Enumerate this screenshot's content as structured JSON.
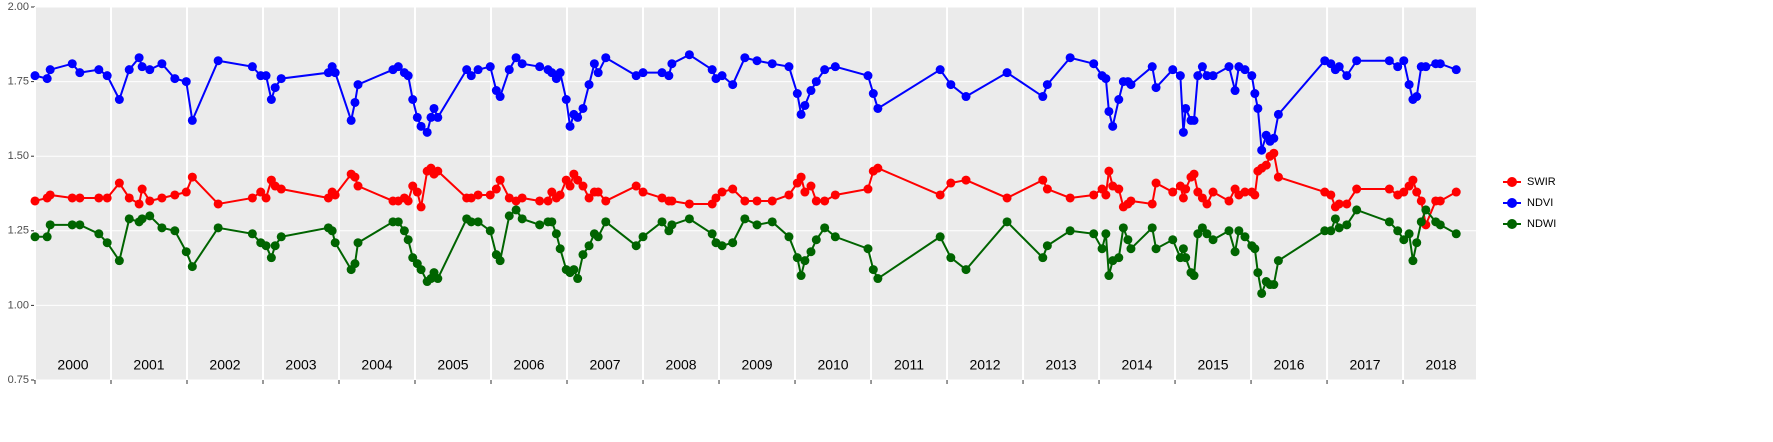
{
  "chart_data": {
    "type": "line",
    "year_labels": [
      "2000",
      "2001",
      "2002",
      "2003",
      "2004",
      "2005",
      "2006",
      "2007",
      "2008",
      "2009",
      "2010",
      "2011",
      "2012",
      "2013",
      "2014",
      "2015",
      "2016",
      "2017",
      "2018"
    ],
    "x": [
      2000.0,
      2000.16,
      2000.2,
      2000.49,
      2000.59,
      2000.84,
      2000.95,
      2001.11,
      2001.24,
      2001.37,
      2001.41,
      2001.51,
      2001.67,
      2001.84,
      2001.99,
      2002.07,
      2002.41,
      2002.86,
      2002.97,
      2003.04,
      2003.11,
      2003.16,
      2003.24,
      2003.86,
      2003.91,
      2003.95,
      2004.16,
      2004.21,
      2004.25,
      2004.71,
      2004.78,
      2004.86,
      2004.91,
      2004.97,
      2005.03,
      2005.08,
      2005.16,
      2005.21,
      2005.25,
      2005.3,
      2005.68,
      2005.74,
      2005.83,
      2005.99,
      2006.07,
      2006.12,
      2006.24,
      2006.33,
      2006.41,
      2006.64,
      2006.75,
      2006.8,
      2006.86,
      2006.91,
      2006.99,
      2007.04,
      2007.09,
      2007.14,
      2007.21,
      2007.29,
      2007.36,
      2007.41,
      2007.51,
      2007.91,
      2008.0,
      2008.25,
      2008.34,
      2008.38,
      2008.61,
      2008.91,
      2008.96,
      2009.04,
      2009.18,
      2009.34,
      2009.5,
      2009.7,
      2009.92,
      2010.03,
      2010.08,
      2010.13,
      2010.21,
      2010.28,
      2010.39,
      2010.53,
      2010.96,
      2011.03,
      2011.09,
      2011.91,
      2012.05,
      2012.25,
      2012.79,
      2013.26,
      2013.32,
      2013.62,
      2013.93,
      2014.04,
      2014.09,
      2014.13,
      2014.18,
      2014.26,
      2014.32,
      2014.38,
      2014.42,
      2014.7,
      2014.75,
      2014.97,
      2015.07,
      2015.11,
      2015.14,
      2015.21,
      2015.25,
      2015.3,
      2015.36,
      2015.42,
      2015.5,
      2015.71,
      2015.79,
      2015.84,
      2015.92,
      2016.01,
      2016.05,
      2016.09,
      2016.14,
      2016.2,
      2016.25,
      2016.3,
      2016.36,
      2016.97,
      2017.05,
      2017.11,
      2017.16,
      2017.26,
      2017.39,
      2017.82,
      2017.93,
      2018.01,
      2018.08,
      2018.13,
      2018.18,
      2018.24,
      2018.3,
      2018.43,
      2018.49,
      2018.7
    ],
    "series": [
      {
        "name": "SWIR",
        "color": "#ff0000",
        "values": [
          1.35,
          1.36,
          1.37,
          1.36,
          1.36,
          1.36,
          1.36,
          1.41,
          1.36,
          1.34,
          1.39,
          1.35,
          1.36,
          1.37,
          1.38,
          1.43,
          1.34,
          1.36,
          1.38,
          1.36,
          1.42,
          1.4,
          1.39,
          1.36,
          1.38,
          1.37,
          1.44,
          1.43,
          1.4,
          1.35,
          1.35,
          1.36,
          1.35,
          1.4,
          1.38,
          1.33,
          1.45,
          1.46,
          1.44,
          1.45,
          1.36,
          1.36,
          1.37,
          1.37,
          1.39,
          1.42,
          1.36,
          1.35,
          1.36,
          1.35,
          1.35,
          1.38,
          1.36,
          1.37,
          1.42,
          1.4,
          1.44,
          1.42,
          1.4,
          1.36,
          1.38,
          1.38,
          1.35,
          1.4,
          1.38,
          1.36,
          1.35,
          1.35,
          1.34,
          1.34,
          1.36,
          1.38,
          1.39,
          1.35,
          1.35,
          1.35,
          1.37,
          1.41,
          1.43,
          1.38,
          1.4,
          1.35,
          1.35,
          1.37,
          1.39,
          1.45,
          1.46,
          1.37,
          1.41,
          1.42,
          1.36,
          1.42,
          1.39,
          1.36,
          1.37,
          1.39,
          1.37,
          1.45,
          1.4,
          1.39,
          1.33,
          1.34,
          1.35,
          1.34,
          1.41,
          1.38,
          1.4,
          1.36,
          1.39,
          1.43,
          1.44,
          1.38,
          1.36,
          1.34,
          1.38,
          1.35,
          1.39,
          1.37,
          1.38,
          1.38,
          1.37,
          1.45,
          1.46,
          1.47,
          1.5,
          1.51,
          1.43,
          1.38,
          1.37,
          1.33,
          1.34,
          1.34,
          1.39,
          1.39,
          1.37,
          1.38,
          1.4,
          1.42,
          1.38,
          1.35,
          1.27,
          1.35,
          1.35,
          1.38
        ]
      },
      {
        "name": "NDVI",
        "color": "#0000ff",
        "values": [
          1.77,
          1.76,
          1.79,
          1.81,
          1.78,
          1.79,
          1.77,
          1.69,
          1.79,
          1.83,
          1.8,
          1.79,
          1.81,
          1.76,
          1.75,
          1.62,
          1.82,
          1.8,
          1.77,
          1.77,
          1.69,
          1.73,
          1.76,
          1.78,
          1.8,
          1.78,
          1.62,
          1.68,
          1.74,
          1.79,
          1.8,
          1.78,
          1.77,
          1.69,
          1.63,
          1.6,
          1.58,
          1.63,
          1.66,
          1.63,
          1.79,
          1.77,
          1.79,
          1.8,
          1.72,
          1.7,
          1.79,
          1.83,
          1.81,
          1.8,
          1.79,
          1.78,
          1.76,
          1.78,
          1.69,
          1.6,
          1.64,
          1.63,
          1.66,
          1.74,
          1.81,
          1.78,
          1.83,
          1.77,
          1.78,
          1.78,
          1.77,
          1.81,
          1.84,
          1.79,
          1.76,
          1.77,
          1.74,
          1.83,
          1.82,
          1.81,
          1.8,
          1.71,
          1.64,
          1.67,
          1.72,
          1.75,
          1.79,
          1.8,
          1.77,
          1.71,
          1.66,
          1.79,
          1.74,
          1.7,
          1.78,
          1.7,
          1.74,
          1.83,
          1.81,
          1.77,
          1.76,
          1.65,
          1.6,
          1.69,
          1.75,
          1.75,
          1.74,
          1.8,
          1.73,
          1.79,
          1.77,
          1.58,
          1.66,
          1.62,
          1.62,
          1.77,
          1.8,
          1.77,
          1.77,
          1.8,
          1.72,
          1.8,
          1.79,
          1.77,
          1.71,
          1.66,
          1.52,
          1.57,
          1.55,
          1.56,
          1.64,
          1.82,
          1.81,
          1.79,
          1.8,
          1.77,
          1.82,
          1.82,
          1.8,
          1.82,
          1.74,
          1.69,
          1.7,
          1.8,
          1.8,
          1.81,
          1.81,
          1.79
        ]
      },
      {
        "name": "NDWI",
        "color": "#006400",
        "values": [
          1.23,
          1.23,
          1.27,
          1.27,
          1.27,
          1.24,
          1.21,
          1.15,
          1.29,
          1.28,
          1.29,
          1.3,
          1.26,
          1.25,
          1.18,
          1.13,
          1.26,
          1.24,
          1.21,
          1.2,
          1.16,
          1.2,
          1.23,
          1.26,
          1.25,
          1.21,
          1.12,
          1.14,
          1.21,
          1.28,
          1.28,
          1.25,
          1.22,
          1.16,
          1.14,
          1.12,
          1.08,
          1.09,
          1.11,
          1.09,
          1.29,
          1.28,
          1.28,
          1.25,
          1.17,
          1.15,
          1.3,
          1.32,
          1.29,
          1.27,
          1.28,
          1.28,
          1.24,
          1.19,
          1.12,
          1.11,
          1.12,
          1.09,
          1.17,
          1.2,
          1.24,
          1.23,
          1.28,
          1.2,
          1.23,
          1.28,
          1.25,
          1.27,
          1.29,
          1.24,
          1.21,
          1.2,
          1.21,
          1.29,
          1.27,
          1.28,
          1.23,
          1.16,
          1.1,
          1.15,
          1.18,
          1.22,
          1.26,
          1.23,
          1.19,
          1.12,
          1.09,
          1.23,
          1.16,
          1.12,
          1.28,
          1.16,
          1.2,
          1.25,
          1.24,
          1.19,
          1.24,
          1.1,
          1.15,
          1.16,
          1.26,
          1.22,
          1.19,
          1.26,
          1.19,
          1.22,
          1.16,
          1.19,
          1.16,
          1.11,
          1.1,
          1.24,
          1.26,
          1.24,
          1.22,
          1.25,
          1.18,
          1.25,
          1.23,
          1.2,
          1.19,
          1.11,
          1.04,
          1.08,
          1.07,
          1.07,
          1.15,
          1.25,
          1.25,
          1.29,
          1.26,
          1.27,
          1.32,
          1.28,
          1.25,
          1.22,
          1.24,
          1.15,
          1.21,
          1.28,
          1.32,
          1.28,
          1.27,
          1.24
        ]
      }
    ],
    "xlim": [
      2000,
      2018.96
    ],
    "xticks": [
      2000,
      2001,
      2002,
      2003,
      2004,
      2005,
      2006,
      2007,
      2008,
      2009,
      2010,
      2011,
      2012,
      2013,
      2014,
      2015,
      2016,
      2017,
      2018
    ],
    "ylim": [
      0.75,
      2.0
    ],
    "yticks": [
      0.75,
      {
        "value": 1.0,
        "label": "1.00"
      },
      1.25,
      {
        "value": 1.5,
        "label": "1.50"
      },
      1.75,
      {
        "value": 2.0,
        "label": "2.00"
      }
    ],
    "grid": true,
    "legend": "right"
  }
}
